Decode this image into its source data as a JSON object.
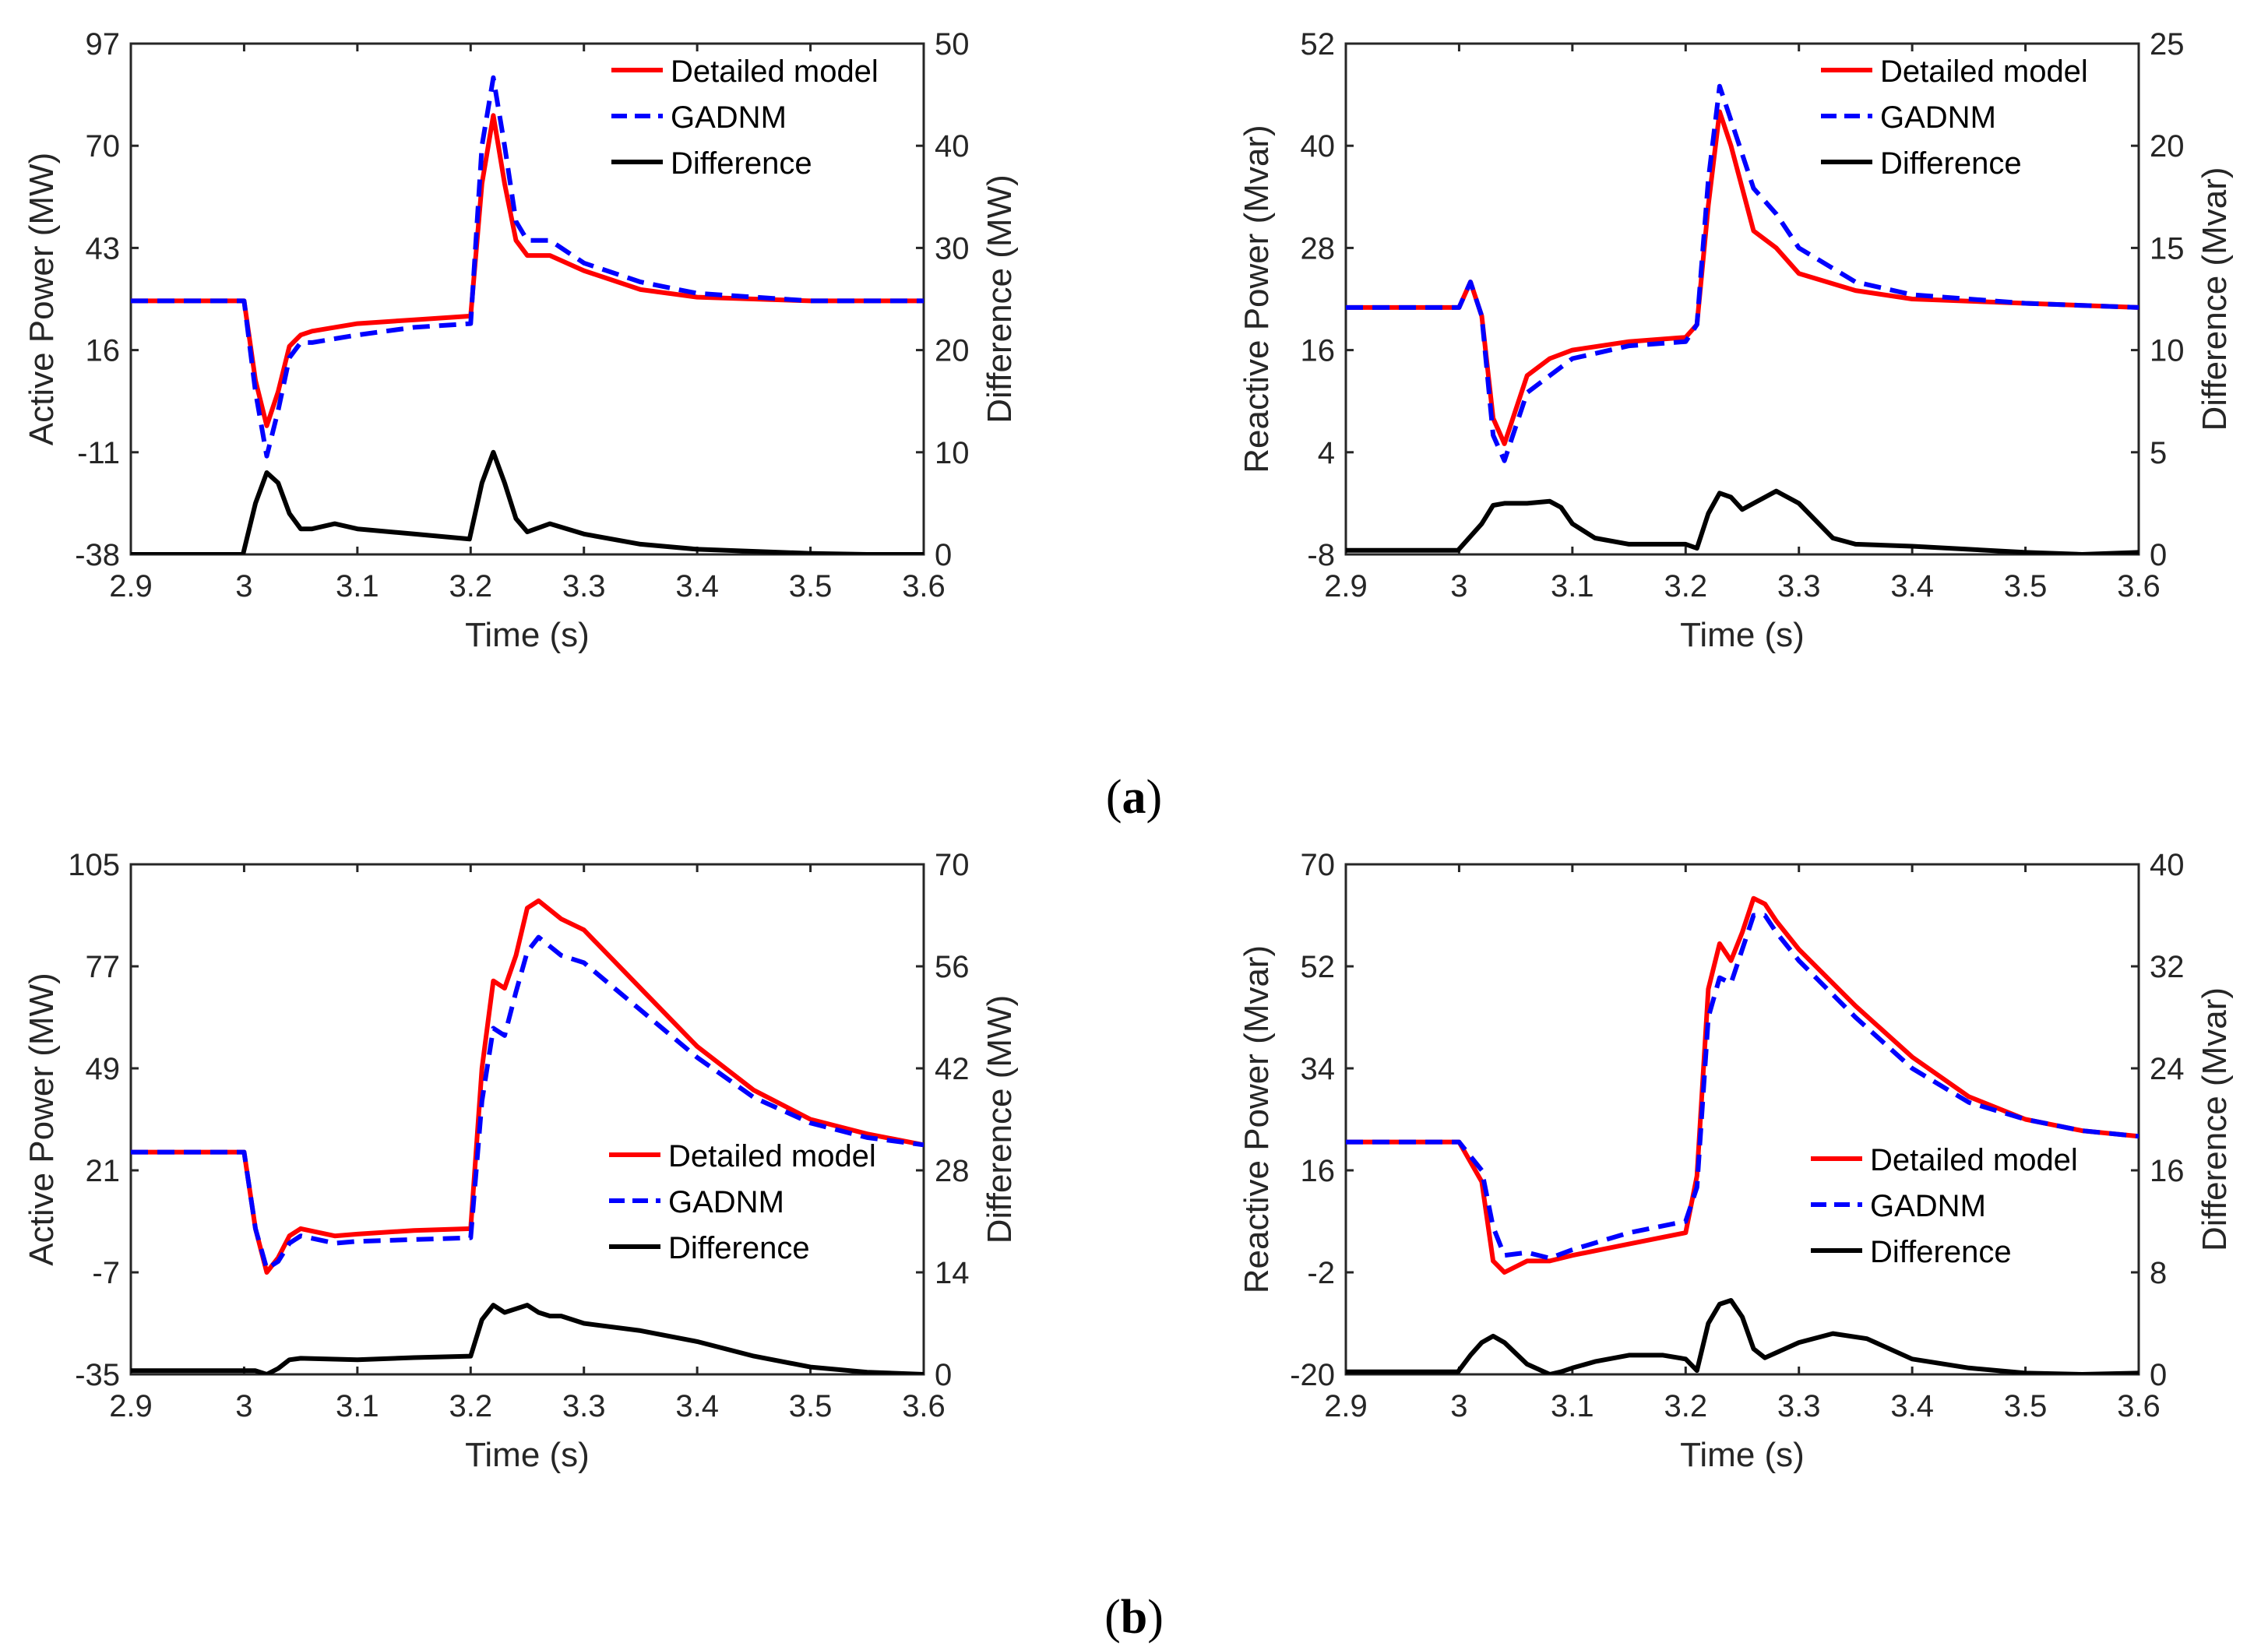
{
  "panel_labels": {
    "a": {
      "open": "(",
      "letter": "a",
      "close": ")"
    },
    "b": {
      "open": "(",
      "letter": "b",
      "close": ")"
    }
  },
  "colors": {
    "detailed": "#ff0000",
    "gadnm": "#0000ff",
    "difference": "#000000"
  },
  "chart_data": [
    {
      "id": "a-left",
      "type": "line",
      "xlabel": "Time (s)",
      "ylabel": "Active Power (MW)",
      "y2label": "Difference (MW)",
      "xlim": [
        2.9,
        3.6
      ],
      "ylim": [
        -38,
        97
      ],
      "y2lim": [
        0,
        50
      ],
      "xticks": [
        "2.9",
        "3",
        "3.1",
        "3.2",
        "3.3",
        "3.4",
        "3.5",
        "3.6"
      ],
      "yticks": [
        "-38",
        "-11",
        "16",
        "43",
        "70",
        "97"
      ],
      "y2ticks": [
        "0",
        "10",
        "20",
        "30",
        "40",
        "50"
      ],
      "legend": [
        "Detailed model",
        "GADNM",
        "Difference"
      ],
      "legend_position": "top-right",
      "series": [
        {
          "name": "Detailed model",
          "axis": "left",
          "style": "solid",
          "color": "#ff0000",
          "x": [
            2.9,
            3.0,
            3.01,
            3.02,
            3.03,
            3.04,
            3.05,
            3.06,
            3.08,
            3.1,
            3.15,
            3.2,
            3.21,
            3.22,
            3.23,
            3.24,
            3.25,
            3.27,
            3.3,
            3.35,
            3.4,
            3.5,
            3.6
          ],
          "y": [
            29,
            29,
            8,
            -4,
            5,
            17,
            20,
            21,
            22,
            23,
            24,
            25,
            60,
            78,
            60,
            45,
            41,
            41,
            37,
            32,
            30,
            29,
            29
          ]
        },
        {
          "name": "GADNM",
          "axis": "left",
          "style": "dashed",
          "color": "#0000ff",
          "x": [
            2.9,
            3.0,
            3.01,
            3.02,
            3.03,
            3.04,
            3.05,
            3.06,
            3.08,
            3.1,
            3.15,
            3.2,
            3.21,
            3.22,
            3.23,
            3.24,
            3.25,
            3.27,
            3.3,
            3.35,
            3.4,
            3.5,
            3.6
          ],
          "y": [
            29,
            29,
            5,
            -12,
            0,
            14,
            18,
            18,
            19,
            20,
            22,
            23,
            70,
            88,
            70,
            50,
            45,
            45,
            39,
            34,
            31,
            29,
            29
          ]
        },
        {
          "name": "Difference",
          "axis": "right",
          "style": "solid",
          "color": "#000000",
          "x": [
            2.9,
            2.999,
            3.01,
            3.02,
            3.03,
            3.04,
            3.05,
            3.06,
            3.08,
            3.1,
            3.15,
            3.199,
            3.21,
            3.22,
            3.23,
            3.24,
            3.25,
            3.27,
            3.3,
            3.35,
            3.4,
            3.5,
            3.55,
            3.6
          ],
          "y": [
            0,
            0,
            5,
            8,
            7,
            4,
            2.5,
            2.5,
            3,
            2.5,
            2,
            1.5,
            7,
            10,
            7,
            3.5,
            2.2,
            3,
            2,
            1,
            0.5,
            0.1,
            0,
            0
          ]
        }
      ]
    },
    {
      "id": "a-right",
      "type": "line",
      "xlabel": "Time (s)",
      "ylabel": "Reactive Power (Mvar)",
      "y2label": "Difference (Mvar)",
      "xlim": [
        2.9,
        3.6
      ],
      "ylim": [
        -8,
        52
      ],
      "y2lim": [
        0,
        25
      ],
      "xticks": [
        "2.9",
        "3",
        "3.1",
        "3.2",
        "3.3",
        "3.4",
        "3.5",
        "3.6"
      ],
      "yticks": [
        "-8",
        "4",
        "16",
        "28",
        "40",
        "52"
      ],
      "y2ticks": [
        "0",
        "5",
        "10",
        "15",
        "20",
        "25"
      ],
      "legend": [
        "Detailed model",
        "GADNM",
        "Difference"
      ],
      "legend_position": "top-right",
      "series": [
        {
          "name": "Detailed model",
          "axis": "left",
          "style": "solid",
          "color": "#ff0000",
          "x": [
            2.9,
            3.0,
            3.01,
            3.02,
            3.03,
            3.04,
            3.06,
            3.08,
            3.1,
            3.15,
            3.2,
            3.21,
            3.22,
            3.23,
            3.24,
            3.26,
            3.28,
            3.3,
            3.35,
            3.4,
            3.5,
            3.6
          ],
          "y": [
            21,
            21,
            24,
            20,
            8,
            5,
            13,
            15,
            16,
            17,
            17.5,
            19,
            33,
            44,
            40,
            30,
            28,
            25,
            23,
            22,
            21.5,
            21
          ]
        },
        {
          "name": "GADNM",
          "axis": "left",
          "style": "dashed",
          "color": "#0000ff",
          "x": [
            2.9,
            3.0,
            3.01,
            3.02,
            3.03,
            3.04,
            3.06,
            3.08,
            3.1,
            3.15,
            3.2,
            3.21,
            3.22,
            3.23,
            3.24,
            3.26,
            3.28,
            3.3,
            3.35,
            3.4,
            3.5,
            3.6
          ],
          "y": [
            21,
            21,
            24,
            20,
            6,
            3,
            11,
            13,
            15,
            16.5,
            17,
            19,
            36,
            47,
            43,
            35,
            32,
            28,
            24,
            22.5,
            21.5,
            21
          ]
        },
        {
          "name": "Difference",
          "axis": "right",
          "style": "solid",
          "color": "#000000",
          "x": [
            2.9,
            2.999,
            3.02,
            3.03,
            3.04,
            3.06,
            3.08,
            3.09,
            3.1,
            3.12,
            3.15,
            3.2,
            3.21,
            3.22,
            3.23,
            3.24,
            3.25,
            3.26,
            3.28,
            3.3,
            3.33,
            3.35,
            3.4,
            3.5,
            3.55,
            3.6
          ],
          "y": [
            0.2,
            0.2,
            1.5,
            2.4,
            2.5,
            2.5,
            2.6,
            2.3,
            1.5,
            0.8,
            0.5,
            0.5,
            0.3,
            2,
            3,
            2.8,
            2.2,
            2.5,
            3.1,
            2.5,
            0.8,
            0.5,
            0.4,
            0.1,
            0,
            0.1
          ]
        }
      ]
    },
    {
      "id": "b-left",
      "type": "line",
      "xlabel": "Time (s)",
      "ylabel": "Active Power (MW)",
      "y2label": "Difference (MW)",
      "xlim": [
        2.9,
        3.6
      ],
      "ylim": [
        -35,
        105
      ],
      "y2lim": [
        0,
        70
      ],
      "xticks": [
        "2.9",
        "3",
        "3.1",
        "3.2",
        "3.3",
        "3.4",
        "3.5",
        "3.6"
      ],
      "yticks": [
        "-35",
        "-7",
        "21",
        "49",
        "77",
        "105"
      ],
      "y2ticks": [
        "0",
        "14",
        "28",
        "42",
        "56",
        "70"
      ],
      "legend": [
        "Detailed model",
        "GADNM",
        "Difference"
      ],
      "legend_position": "center-right",
      "series": [
        {
          "name": "Detailed model",
          "axis": "left",
          "style": "solid",
          "color": "#ff0000",
          "x": [
            2.9,
            3.0,
            3.01,
            3.02,
            3.03,
            3.04,
            3.05,
            3.08,
            3.1,
            3.15,
            3.2,
            3.21,
            3.22,
            3.23,
            3.24,
            3.25,
            3.26,
            3.28,
            3.3,
            3.35,
            3.4,
            3.45,
            3.5,
            3.55,
            3.6
          ],
          "y": [
            26,
            26,
            5,
            -7,
            -3,
            3,
            5,
            3,
            3.5,
            4.5,
            5,
            49,
            73,
            71,
            80,
            93,
            95,
            90,
            87,
            71,
            55,
            43,
            35,
            31,
            28
          ]
        },
        {
          "name": "GADNM",
          "axis": "left",
          "style": "dashed",
          "color": "#0000ff",
          "x": [
            2.9,
            3.0,
            3.01,
            3.02,
            3.03,
            3.04,
            3.05,
            3.08,
            3.1,
            3.15,
            3.2,
            3.21,
            3.22,
            3.23,
            3.24,
            3.25,
            3.26,
            3.28,
            3.3,
            3.35,
            3.4,
            3.45,
            3.5,
            3.55,
            3.6
          ],
          "y": [
            26,
            26,
            5,
            -6,
            -4,
            1,
            3,
            1,
            1.5,
            2,
            2.5,
            40,
            60,
            58,
            70,
            81,
            85,
            80,
            78,
            65,
            52,
            41,
            34,
            30,
            28
          ]
        },
        {
          "name": "Difference",
          "axis": "right",
          "style": "solid",
          "color": "#000000",
          "x": [
            2.9,
            2.999,
            3.01,
            3.02,
            3.03,
            3.04,
            3.05,
            3.1,
            3.15,
            3.2,
            3.21,
            3.22,
            3.23,
            3.24,
            3.25,
            3.26,
            3.27,
            3.28,
            3.3,
            3.35,
            3.4,
            3.45,
            3.5,
            3.55,
            3.6
          ],
          "y": [
            0.5,
            0.5,
            0.5,
            0,
            0.8,
            2,
            2.2,
            2,
            2.3,
            2.5,
            7.5,
            9.5,
            8.5,
            9,
            9.5,
            8.5,
            8,
            8,
            7,
            6,
            4.5,
            2.5,
            1,
            0.3,
            0
          ]
        }
      ]
    },
    {
      "id": "b-right",
      "type": "line",
      "xlabel": "Time (s)",
      "ylabel": "Reactive Power (Mvar)",
      "y2label": "Difference (Mvar)",
      "xlim": [
        2.9,
        3.6
      ],
      "ylim": [
        -20,
        70
      ],
      "y2lim": [
        0,
        40
      ],
      "xticks": [
        "2.9",
        "3",
        "3.1",
        "3.2",
        "3.3",
        "3.4",
        "3.5",
        "3.6"
      ],
      "yticks": [
        "-20",
        "-2",
        "16",
        "34",
        "52",
        "70"
      ],
      "y2ticks": [
        "0",
        "8",
        "16",
        "24",
        "32",
        "40"
      ],
      "legend": [
        "Detailed model",
        "GADNM",
        "Difference"
      ],
      "legend_position": "center-right",
      "series": [
        {
          "name": "Detailed model",
          "axis": "left",
          "style": "solid",
          "color": "#ff0000",
          "x": [
            2.9,
            3.0,
            3.02,
            3.03,
            3.04,
            3.06,
            3.08,
            3.1,
            3.15,
            3.2,
            3.21,
            3.22,
            3.23,
            3.24,
            3.25,
            3.26,
            3.27,
            3.28,
            3.3,
            3.35,
            3.4,
            3.45,
            3.5,
            3.55,
            3.6
          ],
          "y": [
            21,
            21,
            14,
            0,
            -2,
            0,
            0,
            1,
            3,
            5,
            15,
            48,
            56,
            53,
            58,
            64,
            63,
            60,
            55,
            45,
            36,
            29,
            25,
            23,
            22
          ]
        },
        {
          "name": "GADNM",
          "axis": "left",
          "style": "dashed",
          "color": "#0000ff",
          "x": [
            2.9,
            3.0,
            3.02,
            3.03,
            3.04,
            3.06,
            3.08,
            3.1,
            3.15,
            3.2,
            3.21,
            3.22,
            3.23,
            3.24,
            3.25,
            3.26,
            3.27,
            3.28,
            3.3,
            3.35,
            3.4,
            3.45,
            3.5,
            3.55,
            3.6
          ],
          "y": [
            21,
            21,
            16,
            6,
            1,
            1.5,
            0.5,
            2,
            5,
            7,
            13,
            43,
            50,
            49,
            55,
            61,
            61,
            58,
            53,
            43,
            34,
            28,
            25,
            23,
            22
          ]
        },
        {
          "name": "Difference",
          "axis": "right",
          "style": "solid",
          "color": "#000000",
          "x": [
            2.9,
            2.999,
            3.01,
            3.02,
            3.03,
            3.04,
            3.06,
            3.08,
            3.09,
            3.1,
            3.12,
            3.15,
            3.18,
            3.2,
            3.21,
            3.22,
            3.23,
            3.24,
            3.25,
            3.26,
            3.27,
            3.3,
            3.33,
            3.36,
            3.4,
            3.45,
            3.5,
            3.55,
            3.6
          ],
          "y": [
            0.2,
            0.2,
            1.5,
            2.5,
            3,
            2.5,
            0.8,
            0,
            0.2,
            0.5,
            1,
            1.5,
            1.5,
            1.2,
            0.3,
            4,
            5.5,
            5.8,
            4.5,
            2,
            1.3,
            2.5,
            3.2,
            2.8,
            1.2,
            0.5,
            0.1,
            0,
            0.1
          ]
        }
      ]
    }
  ]
}
